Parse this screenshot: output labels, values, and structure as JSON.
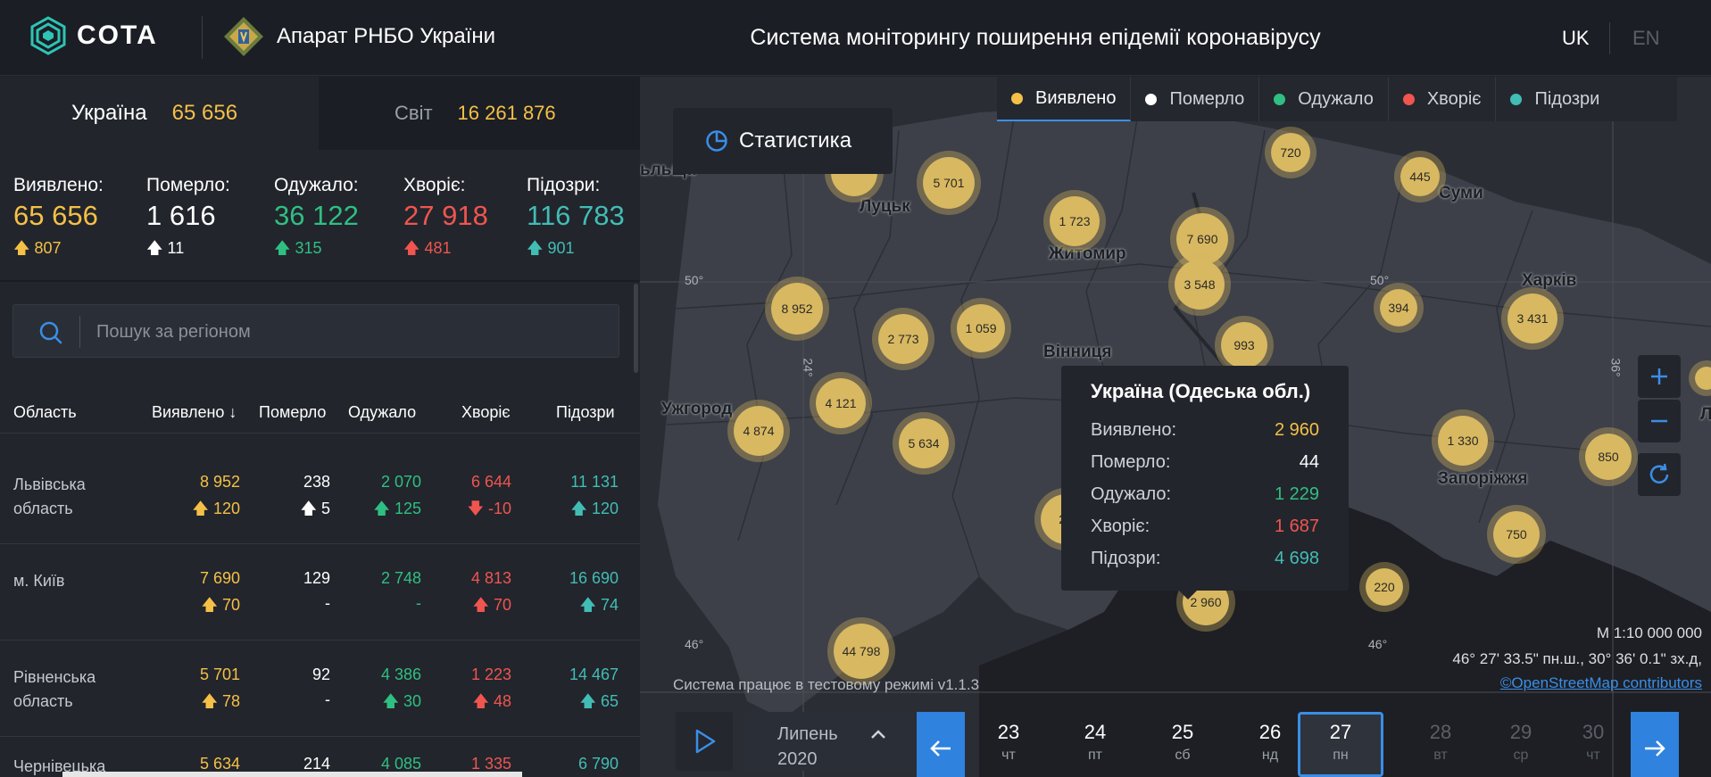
{
  "header": {
    "logo_text": "COTA",
    "org_name": "Апарат РНБО України",
    "title": "Система моніторингу поширення епідемії коронавірусу",
    "lang_uk": "UK",
    "lang_en": "EN"
  },
  "scope": {
    "ukraine_label": "Україна",
    "ukraine_value": "65 656",
    "world_label": "Світ",
    "world_value": "16 261 876"
  },
  "stats": [
    {
      "label": "Виявлено:",
      "value": "65 656",
      "delta": "807",
      "color": "#f5c046"
    },
    {
      "label": "Померло:",
      "value": "1 616",
      "delta": "11",
      "color": "#ffffff"
    },
    {
      "label": "Одужало:",
      "value": "36 122",
      "delta": "315",
      "color": "#2fbf82"
    },
    {
      "label": "Хворіє:",
      "value": "27 918",
      "delta": "481",
      "color": "#f0554f"
    },
    {
      "label": "Підозри:",
      "value": "116 783",
      "delta": "901",
      "color": "#42bdb5"
    }
  ],
  "search": {
    "placeholder": "Пошук за регіоном"
  },
  "table": {
    "headers": [
      "Область",
      "Виявлено",
      "Померло",
      "Одужало",
      "Хворіє",
      "Підозри"
    ],
    "rows": [
      {
        "name": "Львівська область",
        "detected": "8 952",
        "detected_d": "120",
        "deaths": "238",
        "deaths_d": "5",
        "recovered": "2 070",
        "recovered_d": "125",
        "sick": "6 644",
        "sick_d": "-10",
        "suspected": "11 131",
        "suspected_d": "120"
      },
      {
        "name": "м. Київ",
        "detected": "7 690",
        "detected_d": "70",
        "deaths": "129",
        "deaths_d": "-",
        "recovered": "2 748",
        "recovered_d": "-",
        "sick": "4 813",
        "sick_d": "70",
        "suspected": "16 690",
        "suspected_d": "74"
      },
      {
        "name": "Рівненська область",
        "detected": "5 701",
        "detected_d": "78",
        "deaths": "92",
        "deaths_d": "-",
        "recovered": "4 386",
        "recovered_d": "30",
        "sick": "1 223",
        "sick_d": "48",
        "suspected": "14 467",
        "suspected_d": "65"
      },
      {
        "name": "Чернівецька",
        "detected": "5 634",
        "detected_d": "",
        "deaths": "214",
        "deaths_d": "",
        "recovered": "4 085",
        "recovered_d": "",
        "sick": "1 335",
        "sick_d": "",
        "suspected": "6 790",
        "suspected_d": ""
      }
    ]
  },
  "legend": [
    "Виявлено",
    "Померло",
    "Одужало",
    "Хворіє",
    "Підозри"
  ],
  "statistics_button": "Статистика",
  "map": {
    "bubbles": [
      "720",
      "445",
      "5 701",
      "1 723",
      "7 690",
      "3 548",
      "8 952",
      "2 773",
      "1 059",
      "394",
      "3 431",
      "4 121",
      "4 874",
      "5 634",
      "1 330",
      "850",
      "750",
      "220",
      "2 960",
      "44 798",
      "23",
      "993"
    ],
    "cities": [
      "Луцьк",
      "Суми",
      "Житомир",
      "Харків",
      "Вінниця",
      "Ужгород",
      "Запоріжжя",
      "ьльща",
      "Л"
    ],
    "coord_labels": [
      "50°",
      "50°",
      "24°",
      "36°",
      "46°",
      "46°"
    ],
    "scale": "М 1:10 000 000",
    "coords": "46° 27' 33.5\" пн.ш., 30° 36' 0.1\" зх.д,",
    "attribution": "©OpenStreetMap contributors",
    "test_mode": "Система працює в тестовому режимі v1.1.3"
  },
  "tooltip": {
    "title": "Україна (Одеська обл.)",
    "rows": [
      {
        "label": "Виявлено:",
        "value": "2 960"
      },
      {
        "label": "Померло:",
        "value": "44"
      },
      {
        "label": "Одужало:",
        "value": "1 229"
      },
      {
        "label": "Хворіє:",
        "value": "1 687"
      },
      {
        "label": "Підозри:",
        "value": "4 698"
      }
    ]
  },
  "timeline": {
    "month": "Липень",
    "year": "2020",
    "days": [
      {
        "num": "23",
        "wd": "чт"
      },
      {
        "num": "24",
        "wd": "пт"
      },
      {
        "num": "25",
        "wd": "сб"
      },
      {
        "num": "26",
        "wd": "нд"
      },
      {
        "num": "27",
        "wd": "пн"
      },
      {
        "num": "28",
        "wd": "вт"
      },
      {
        "num": "29",
        "wd": "ср"
      },
      {
        "num": "30",
        "wd": "чт"
      }
    ]
  },
  "colors": {
    "accent": "#3a8ee6",
    "detected": "#f5c046",
    "recovered": "#2fbf82",
    "sick": "#f0554f",
    "suspected": "#42bdb5"
  }
}
